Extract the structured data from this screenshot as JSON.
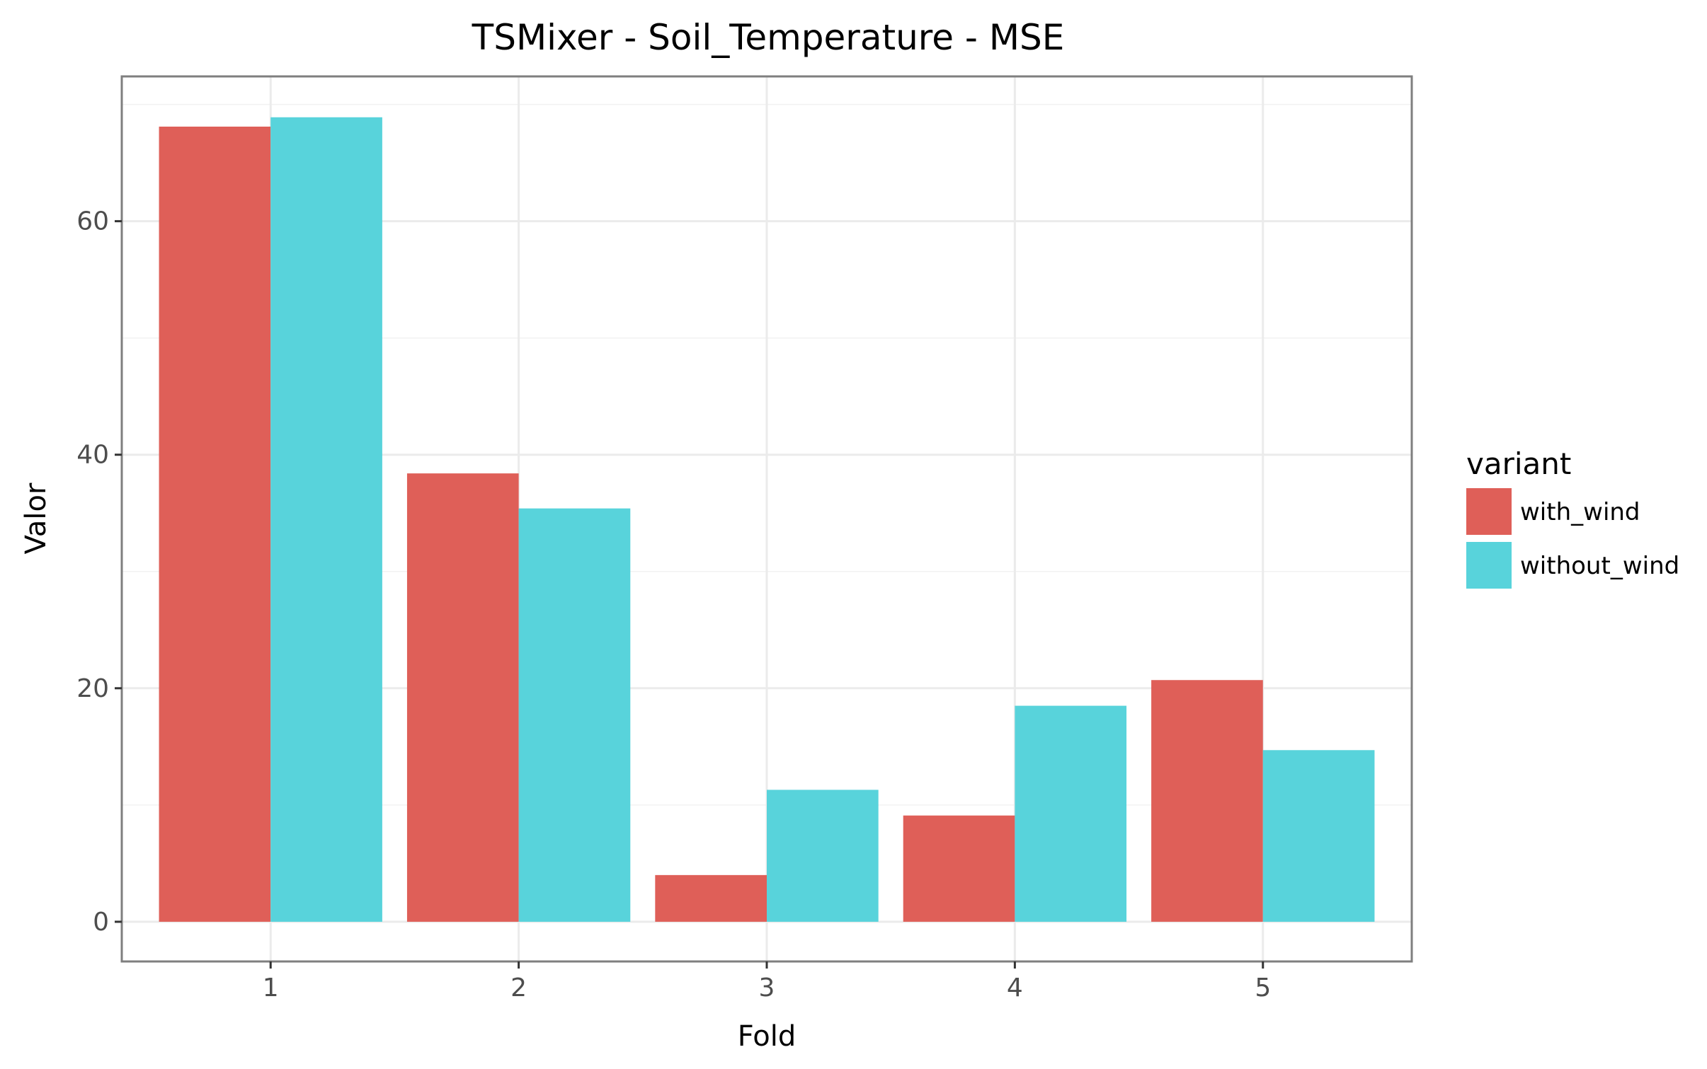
{
  "chart_data": {
    "type": "bar",
    "title": "TSMixer - Soil_Temperature - MSE",
    "xlabel": "Fold",
    "ylabel": "Valor",
    "categories": [
      "1",
      "2",
      "3",
      "4",
      "5"
    ],
    "series": [
      {
        "name": "with_wind",
        "color": "#df5f58",
        "values": [
          68.1,
          38.4,
          4.0,
          9.1,
          20.7
        ]
      },
      {
        "name": "without_wind",
        "color": "#58d3db",
        "values": [
          68.9,
          35.4,
          11.3,
          18.5,
          14.7
        ]
      }
    ],
    "ylim": [
      -3.4,
      72.4
    ],
    "yticks": [
      0,
      20,
      40,
      60
    ],
    "yticks_labels": [
      "0",
      "20",
      "40",
      "60"
    ],
    "grid": true,
    "legend": {
      "title": "variant",
      "placement": "right"
    }
  }
}
